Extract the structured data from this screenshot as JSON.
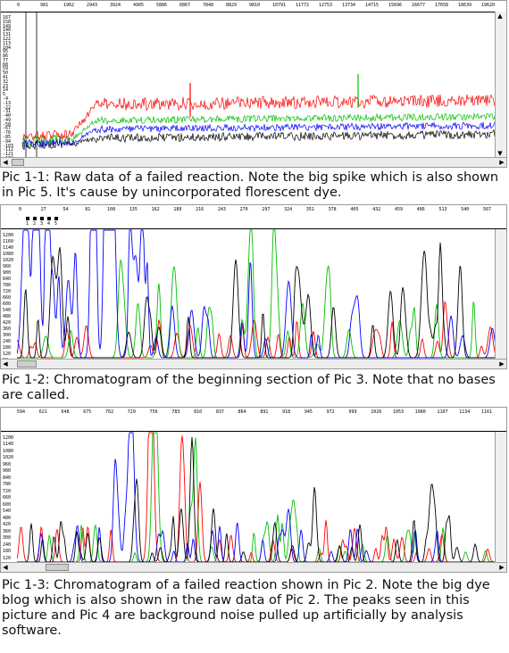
{
  "captions": {
    "pic1": "Pic 1-1: Raw data of a failed reaction. Note the big spike which is also shown in Pic 5. It's cause by unincorporated florescent dye.",
    "pic2": "Pic 1-2: Chromatogram of the beginning section of Pic 3. Note that no bases are called.",
    "pic3": "Pic 1-3: Chromatogram of a failed reaction shown in Pic 2. Note the big dye blog which is also shown in the raw data of Pic 2. The peaks seen in this picture and Pic 4 are background noise pulled up artificially by analysis software."
  },
  "panel1": {
    "ruler": [
      "0",
      "981",
      "1962",
      "2943",
      "3924",
      "4905",
      "5886",
      "6867",
      "7848",
      "8829",
      "9810",
      "10791",
      "11772",
      "12753",
      "13734",
      "14715",
      "15696",
      "16677",
      "17658",
      "18639",
      "19620"
    ],
    "yticks": [
      "167",
      "158",
      "149",
      "140",
      "131",
      "122",
      "113",
      "104",
      "95",
      "86",
      "77",
      "68",
      "59",
      "50",
      "41",
      "32",
      "23",
      "14",
      "5",
      "-4",
      "-13",
      "-22",
      "-31",
      "-40",
      "-49",
      "-58",
      "-67",
      "-76",
      "-85",
      "-94",
      "-103",
      "-112",
      "-121",
      "-130"
    ]
  },
  "panel2": {
    "ruler": [
      "0",
      "27",
      "54",
      "81",
      "108",
      "135",
      "162",
      "189",
      "216",
      "243",
      "270",
      "297",
      "324",
      "351",
      "378",
      "405",
      "432",
      "459",
      "486",
      "513",
      "540",
      "567"
    ],
    "lane_marks": [
      "1",
      "2",
      "3",
      "4",
      "5"
    ],
    "yticks": [
      "1200",
      "1160",
      "1140",
      "1080",
      "1020",
      "960",
      "900",
      "840",
      "780",
      "720",
      "660",
      "600",
      "540",
      "480",
      "420",
      "360",
      "300",
      "240",
      "180",
      "120",
      "60"
    ]
  },
  "panel3": {
    "ruler": [
      "594",
      "621",
      "648",
      "675",
      "702",
      "729",
      "756",
      "783",
      "810",
      "837",
      "864",
      "891",
      "918",
      "945",
      "972",
      "999",
      "1026",
      "1053",
      "1080",
      "1107",
      "1134",
      "1161"
    ],
    "yticks": [
      "1200",
      "1140",
      "1080",
      "1020",
      "960",
      "900",
      "840",
      "780",
      "720",
      "660",
      "600",
      "540",
      "480",
      "420",
      "360",
      "300",
      "240",
      "180",
      "120",
      "60"
    ]
  },
  "colors": {
    "trace_a": "#ff0000",
    "trace_c": "#0000ff",
    "trace_g": "#000000",
    "trace_t": "#00c000"
  }
}
